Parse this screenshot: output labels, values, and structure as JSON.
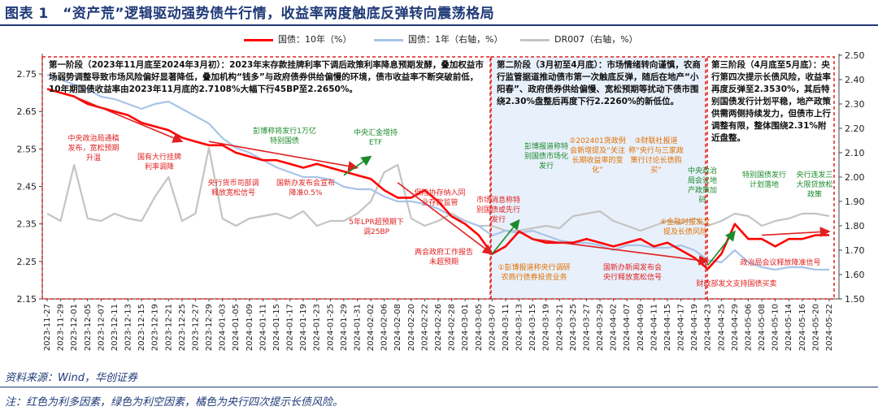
{
  "title": "图表 1　“资产荒”逻辑驱动强势债牛行情，收益率两度触底反弹转向震荡格局",
  "legend": {
    "s1": "国债：10年（%）",
    "s2": "国债：1年（右轴，%）",
    "s3": "DR007（右轴，%）"
  },
  "colors": {
    "s1": "#ff0000",
    "s2": "#a8c4e8",
    "s3": "#c4c4c4",
    "phase_border": "#e02020",
    "phase2_fill": "#e8f0fb",
    "title": "#1f3a78"
  },
  "phases": {
    "p1": "第一阶段（2023年11月底至2024年3月初）：2023年末存款挂牌利率下调后政策利率降息预期发酵，叠加权益市场弱势调整导致市场风险偏好显著降低，叠加机构“钱多”与政府债券供给偏慢的环境，债市收益率不断突破前低，10年期国债收益率由2023年11月底的2.7108%大幅下行45BP至2.2650%。",
    "p2": "第二阶段（3月初至4月底）：市场情绪转向谨慎，农商行监管据道推动债市第一次触底反弹，随后在地产“小阳春”、政府债券供给偏慢、宽松预期等扰动下债市围绕2.30%盘整后再度下行2.2260%的新低位。",
    "p3": "第三阶段（4月底至5月底）：央行第四次提示长债风险，收益率再度反弹至2.3530%，其后特别国债发行计划平稳，地产政策供需两侧持续发力，但债市上行调整有限，整体围绕2.31%附近盘整。"
  },
  "annotations": {
    "a1": "中央政治局通稿发布，宽松预期升温",
    "a2": "国有大行挂牌利率调降",
    "a3": "彭博称将发行1万亿特别国债",
    "a4": "央行货币司部调释放宽松信号",
    "a5": "国新办发布会宣布降准0.5%",
    "a6": "中央汇金增持ETF",
    "a7": "5年LPR超预期下调25BP",
    "a8": "保险协存纳入同业存款监管",
    "a9": "两会政府工作报告未超预期",
    "a10": "市场消息称特别国债或先行发行",
    "a11": "彭博报道称特别国债市场化发行",
    "a12": "①彭博报道称央行调研农商行债券投资业务",
    "a13": "②202401货政例会新增提及“关注长期收益率的变化”",
    "a14": "③财联社报道称“央行与三家政策行讨论长债购买”",
    "a15": "国新办新闻发布会央行释放宽松信号",
    "a16": "④金融时报发文提及长债风险",
    "a17": "财政部发文支持国债买卖",
    "a18": "中央政治局会议地产政策加码",
    "a19": "特别国债发行计划落地",
    "a20": "央行连发三大限贷放松政策",
    "a21": "政治局会议释放降准信号"
  },
  "source": "资料来源：Wind，华创证券",
  "note": "注：红色为利多因素，绿色为利空因素，橘色为央行四次提示长债风险。",
  "chart_data": {
    "type": "line",
    "title": "“资产荒”逻辑驱动强势债牛行情，收益率两度触底反弹转向震荡格局",
    "xlabel": "",
    "ylabel": "",
    "ylim": [
      2.15,
      2.8
    ],
    "ylim_right": [
      1.5,
      2.5
    ],
    "yticks_left": [
      "2.15",
      "2.25",
      "2.35",
      "2.45",
      "2.55",
      "2.65",
      "2.75"
    ],
    "yticks_right": [
      "1.50",
      "1.60",
      "1.70",
      "1.80",
      "1.90",
      "2.00",
      "2.10",
      "2.20",
      "2.30",
      "2.40",
      "2.50"
    ],
    "x_ticks": [
      "2023-11-27",
      "2023-11-29",
      "2023-12-01",
      "2023-12-05",
      "2023-12-07",
      "2023-12-11",
      "2023-12-13",
      "2023-12-15",
      "2023-12-19",
      "2023-12-21",
      "2023-12-25",
      "2023-12-27",
      "2023-12-29",
      "2024-01-03",
      "2024-01-05",
      "2024-01-09",
      "2024-01-11",
      "2024-01-15",
      "2024-01-17",
      "2024-01-19",
      "2024-01-23",
      "2024-01-25",
      "2024-01-29",
      "2024-01-31",
      "2024-02-02",
      "2024-02-06",
      "2024-02-08",
      "2024-02-20",
      "2024-02-22",
      "2024-02-26",
      "2024-02-28",
      "2024-03-01",
      "2024-03-05",
      "2024-03-07",
      "2024-03-11",
      "2024-03-13",
      "2024-03-15",
      "2024-03-19",
      "2024-03-21",
      "2024-03-25",
      "2024-03-27",
      "2024-03-29",
      "2024-04-02",
      "2024-04-07",
      "2024-04-09",
      "2024-04-11",
      "2024-04-15",
      "2024-04-17",
      "2024-04-19",
      "2024-04-23",
      "2024-04-25",
      "2024-04-29",
      "2024-05-06",
      "2024-05-08",
      "2024-05-10",
      "2024-05-14",
      "2024-05-16",
      "2024-05-20",
      "2024-05-22"
    ],
    "series": [
      {
        "name": "国债：10年（%）",
        "axis": "left",
        "values": [
          2.71,
          2.7,
          2.69,
          2.67,
          2.66,
          2.65,
          2.64,
          2.62,
          2.61,
          2.6,
          2.58,
          2.57,
          2.56,
          2.56,
          2.54,
          2.53,
          2.52,
          2.52,
          2.51,
          2.5,
          2.51,
          2.5,
          2.49,
          2.48,
          2.47,
          2.44,
          2.42,
          2.42,
          2.44,
          2.41,
          2.37,
          2.35,
          2.32,
          2.27,
          2.29,
          2.33,
          2.31,
          2.3,
          2.3,
          2.3,
          2.31,
          2.3,
          2.29,
          2.3,
          2.31,
          2.29,
          2.3,
          2.28,
          2.26,
          2.23,
          2.27,
          2.35,
          2.31,
          2.31,
          2.29,
          2.31,
          2.31,
          2.32,
          2.32
        ]
      },
      {
        "name": "国债：1年（右轴，%）",
        "axis": "right",
        "values": [
          2.42,
          2.4,
          2.38,
          2.36,
          2.33,
          2.32,
          2.3,
          2.28,
          2.3,
          2.31,
          2.28,
          2.25,
          2.22,
          2.16,
          2.12,
          2.1,
          2.07,
          2.04,
          2.02,
          2.0,
          2.0,
          1.99,
          1.96,
          1.95,
          1.95,
          1.92,
          1.9,
          1.9,
          1.89,
          1.87,
          1.84,
          1.82,
          1.8,
          1.76,
          1.78,
          1.77,
          1.78,
          1.76,
          1.74,
          1.73,
          1.73,
          1.72,
          1.7,
          1.72,
          1.72,
          1.71,
          1.71,
          1.72,
          1.7,
          1.66,
          1.65,
          1.7,
          1.65,
          1.63,
          1.62,
          1.63,
          1.63,
          1.62,
          1.62
        ]
      },
      {
        "name": "DR007（右轴，%）",
        "axis": "right",
        "values": [
          1.85,
          1.82,
          2.05,
          1.83,
          1.82,
          1.85,
          1.83,
          1.82,
          1.92,
          2.0,
          1.82,
          1.85,
          2.12,
          1.83,
          1.8,
          1.83,
          1.84,
          1.85,
          1.83,
          1.86,
          1.8,
          1.82,
          1.82,
          1.85,
          1.9,
          2.02,
          2.05,
          1.83,
          1.8,
          1.82,
          1.85,
          1.82,
          1.8,
          1.8,
          1.78,
          1.78,
          1.79,
          1.8,
          1.79,
          1.84,
          1.85,
          1.86,
          1.82,
          1.8,
          1.78,
          1.8,
          1.82,
          1.81,
          1.83,
          1.8,
          1.82,
          1.85,
          1.84,
          1.8,
          1.82,
          1.83,
          1.85,
          1.85,
          1.84
        ]
      }
    ]
  }
}
